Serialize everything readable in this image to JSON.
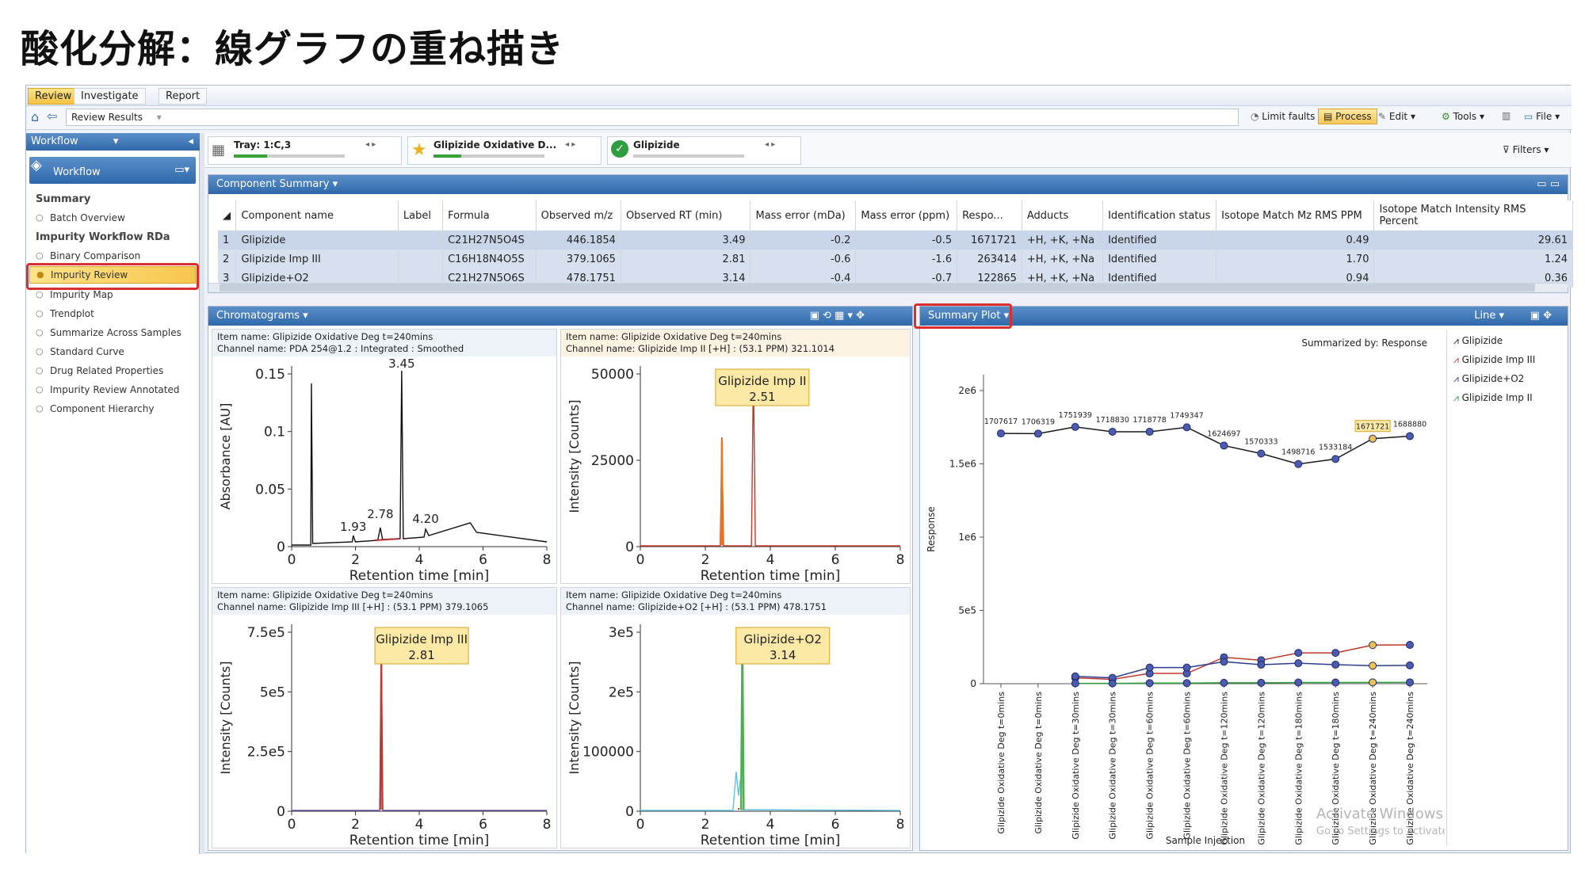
{
  "page": {
    "title": "酸化分解：線グラフの重ね描き"
  },
  "menu": {
    "tabs": [
      "Review",
      "Investigate",
      "Report"
    ]
  },
  "nav": {
    "breadcrumb": "Review Results",
    "limit_faults": "Limit faults",
    "process": "Process",
    "edit": "Edit",
    "tools": "Tools",
    "file": "File",
    "filters": "Filters"
  },
  "selectors": {
    "tray": "Tray: 1:C,3",
    "sample": "Glipizide Oxidative D...",
    "component": "Glipizide"
  },
  "sidebar": {
    "header": "Workflow",
    "subheader": "Workflow",
    "summary_label": "Summary",
    "batch_overview": "Batch Overview",
    "group_label": "Impurity Workflow RDa",
    "items": [
      "Binary Comparison",
      "Impurity Review",
      "Impurity Map",
      "Trendplot",
      "Summarize Across Samples",
      "Standard Curve",
      "Drug Related Properties",
      "Impurity Review Annotated",
      "Component Hierarchy"
    ]
  },
  "component_summary": {
    "title": "Component Summary",
    "columns": [
      "Component name",
      "Label",
      "Formula",
      "Observed m/z",
      "Observed RT (min)",
      "Mass error (mDa)",
      "Mass error (ppm)",
      "Respo...",
      "Adducts",
      "Identification status",
      "Isotope Match Mz RMS PPM",
      "Isotope Match Intensity RMS Percent"
    ],
    "rows": [
      {
        "idx": "1",
        "name": "Glipizide",
        "label": "",
        "formula": "C21H27N5O4S",
        "mz": "446.1854",
        "rt": "3.49",
        "err_mda": "-0.2",
        "err_ppm": "-0.5",
        "response": "1671721",
        "adducts": "+H, +K, +Na",
        "status": "Identified",
        "iso_ppm": "0.49",
        "iso_pct": "29.61"
      },
      {
        "idx": "2",
        "name": "Glipizide Imp III",
        "label": "",
        "formula": "C16H18N4O5S",
        "mz": "379.1065",
        "rt": "2.81",
        "err_mda": "-0.6",
        "err_ppm": "-1.6",
        "response": "263414",
        "adducts": "+H, +K, +Na",
        "status": "Identified",
        "iso_ppm": "1.70",
        "iso_pct": "1.24"
      },
      {
        "idx": "3",
        "name": "Glipizide+O2",
        "label": "",
        "formula": "C21H27N5O6S",
        "mz": "478.1751",
        "rt": "3.14",
        "err_mda": "-0.4",
        "err_ppm": "-0.7",
        "response": "122865",
        "adducts": "+H, +K, +Na",
        "status": "Identified",
        "iso_ppm": "0.94",
        "iso_pct": "0.36"
      }
    ]
  },
  "chromatograms": {
    "title": "Chromatograms",
    "xlabel": "Retention time [min]",
    "xticks": [
      "0",
      "2",
      "4",
      "6",
      "8"
    ],
    "panels": [
      {
        "item": "Item name: Glipizide Oxidative Deg t=240mins",
        "channel": "Channel name: PDA 254@1.2 : Integrated : Smoothed",
        "ylabel": "Absorbance [AU]",
        "yticks": [
          "0.15",
          "0.1",
          "0.05",
          "0"
        ],
        "labels": [
          "3.45",
          "2.78",
          "1.93",
          "4.20"
        ]
      },
      {
        "item": "Item name: Glipizide Oxidative Deg t=240mins",
        "channel": "Channel name: Glipizide Imp II [+H] : (53.1 PPM) 321.1014",
        "ylabel": "Intensity [Counts]",
        "yticks": [
          "50000",
          "25000",
          "0"
        ],
        "callout_name": "Glipizide Imp II",
        "callout_rt": "2.51"
      },
      {
        "item": "Item name: Glipizide Oxidative Deg t=240mins",
        "channel": "Channel name: Glipizide Imp III [+H] : (53.1 PPM) 379.1065",
        "ylabel": "Intensity [Counts]",
        "yticks": [
          "7.5e5",
          "5e5",
          "2.5e5",
          "0"
        ],
        "callout_name": "Glipizide Imp III",
        "callout_rt": "2.81"
      },
      {
        "item": "Item name: Glipizide Oxidative Deg t=240mins",
        "channel": "Channel name: Glipizide+O2 [+H] : (53.1 PPM) 478.1751",
        "ylabel": "Intensity [Counts]",
        "yticks": [
          "3e5",
          "2e5",
          "100000",
          "0"
        ],
        "callout_name": "Glipizide+O2",
        "callout_rt": "3.14"
      }
    ]
  },
  "summary_plot": {
    "title": "Summary Plot",
    "mode": "Line",
    "summarized_by": "Summarized by: Response",
    "watermark_1": "Activate Windows",
    "watermark_2": "Go to Settings to activate Windows."
  },
  "chart_data": {
    "type": "line",
    "xlabel": "Sample Injection",
    "ylabel": "Response",
    "ylim": [
      0,
      2000000
    ],
    "yticks": [
      "2e6",
      "1.5e6",
      "1e6",
      "5e5",
      "0"
    ],
    "categories": [
      "Glipizide Oxidative Deg t=0mins",
      "Glipizide Oxidative Deg t=0mins",
      "Glipizide Oxidative Deg t=30mins",
      "Glipizide Oxidative Deg t=30mins",
      "Glipizide Oxidative Deg t=60mins",
      "Glipizide Oxidative Deg t=60mins",
      "Glipizide Oxidative Deg t=120mins",
      "Glipizide Oxidative Deg t=120mins",
      "Glipizide Oxidative Deg t=180mins",
      "Glipizide Oxidative Deg t=180mins",
      "Glipizide Oxidative Deg t=240mins",
      "Glipizide Oxidative Deg t=240mins"
    ],
    "series": [
      {
        "name": "Glipizide",
        "color": "#1a1a1a",
        "values": [
          1707617,
          1706319,
          1751939,
          1718830,
          1718778,
          1749347,
          1624697,
          1570333,
          1498716,
          1533184,
          1671721,
          1688880
        ]
      },
      {
        "name": "Glipizide Imp III",
        "color": "#c0392b",
        "values": [
          null,
          null,
          40000,
          30000,
          70000,
          70000,
          180000,
          160000,
          210000,
          210000,
          263414,
          265000
        ]
      },
      {
        "name": "Glipizide+O2",
        "color": "#2c3e8f",
        "values": [
          null,
          null,
          50000,
          40000,
          110000,
          110000,
          150000,
          130000,
          140000,
          130000,
          122865,
          125000
        ]
      },
      {
        "name": "Glipizide Imp II",
        "color": "#2e9e3e",
        "values": [
          null,
          null,
          2000,
          2000,
          4000,
          4000,
          6000,
          6000,
          8000,
          8000,
          9000,
          9000
        ]
      }
    ],
    "highlight_index": 10,
    "data_labels": [
      "1707617",
      "1706319",
      "1751939",
      "1718830",
      "1718778",
      "1749347",
      "1624697",
      "1570333",
      "1498716",
      "1533184",
      "1671721",
      "1688880"
    ]
  }
}
